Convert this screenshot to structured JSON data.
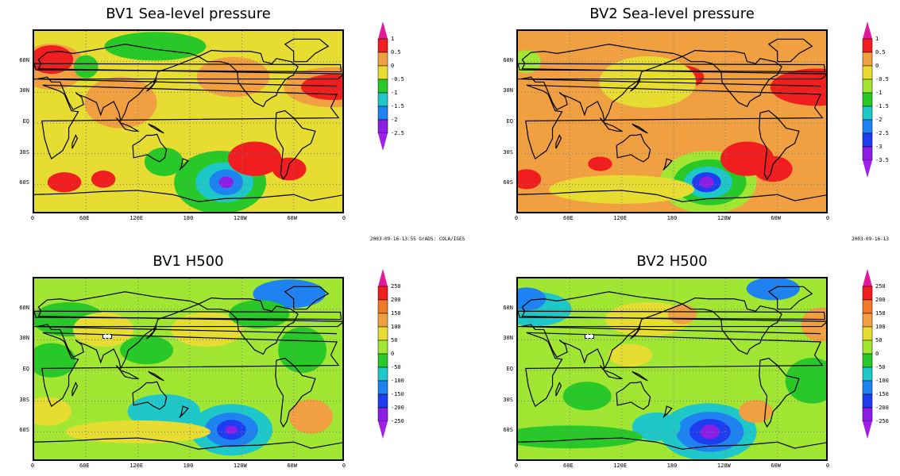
{
  "panels": [
    {
      "id": "bv1-slp",
      "title": "BV1  Sea-level pressure",
      "colorbar": {
        "labels": [
          "1",
          "0.5",
          "0",
          "-0.5",
          "-1",
          "-1.5",
          "-2",
          "-2.5"
        ],
        "colors": [
          "#e0189a",
          "#f01e1e",
          "#f0a040",
          "#e6dc32",
          "#28c828",
          "#1ec8c8",
          "#1e82f0",
          "#8c1ee6",
          "#a01ee6"
        ]
      },
      "base_color": "#e6dc32",
      "blobs": [
        {
          "lon": 215,
          "lat": -58,
          "rx": 38,
          "ry": 22,
          "color": "#28c828"
        },
        {
          "lon": 220,
          "lat": -58,
          "rx": 24,
          "ry": 14,
          "color": "#1ec8c8"
        },
        {
          "lon": 222,
          "lat": -58,
          "rx": 14,
          "ry": 9,
          "color": "#1e82f0"
        },
        {
          "lon": 222,
          "lat": -58,
          "rx": 6,
          "ry": 4,
          "color": "#8c1ee6"
        },
        {
          "lon": 150,
          "lat": -38,
          "rx": 16,
          "ry": 10,
          "color": "#28c828"
        },
        {
          "lon": 140,
          "lat": 75,
          "rx": 42,
          "ry": 10,
          "color": "#28c828"
        },
        {
          "lon": 255,
          "lat": -35,
          "rx": 22,
          "ry": 12,
          "color": "#f01e1e"
        },
        {
          "lon": 295,
          "lat": -45,
          "rx": 14,
          "ry": 8,
          "color": "#f01e1e"
        },
        {
          "lon": 345,
          "lat": 35,
          "rx": 40,
          "ry": 14,
          "color": "#f0a040"
        },
        {
          "lon": 345,
          "lat": 35,
          "rx": 26,
          "ry": 9,
          "color": "#f01e1e"
        },
        {
          "lon": 20,
          "lat": 55,
          "rx": 28,
          "ry": 16,
          "color": "#f0a040"
        },
        {
          "lon": 20,
          "lat": 62,
          "rx": 18,
          "ry": 10,
          "color": "#f01e1e"
        },
        {
          "lon": 35,
          "lat": -58,
          "rx": 14,
          "ry": 7,
          "color": "#f01e1e"
        },
        {
          "lon": 80,
          "lat": -55,
          "rx": 10,
          "ry": 6,
          "color": "#f01e1e"
        },
        {
          "lon": 230,
          "lat": 45,
          "rx": 30,
          "ry": 14,
          "color": "#f0a040"
        },
        {
          "lon": 100,
          "lat": 20,
          "rx": 30,
          "ry": 18,
          "color": "#f0a040"
        },
        {
          "lon": 60,
          "lat": 55,
          "rx": 10,
          "ry": 8,
          "color": "#28c828"
        }
      ],
      "ylabels": [
        "60N",
        "30N",
        "EQ",
        "30S",
        "60S"
      ],
      "xlabels": [
        "0",
        "60E",
        "120E",
        "180",
        "120W",
        "60W",
        "0"
      ],
      "stamp": "2003-09-16-13:55  GrADS: COLA/IGES"
    },
    {
      "id": "bv2-slp",
      "title": "BV2  Sea-level pressure",
      "colorbar": {
        "labels": [
          "1",
          "0.5",
          "0",
          "-0.5",
          "-1",
          "-1.5",
          "-2",
          "-2.5",
          "-3",
          "-3.5"
        ],
        "colors": [
          "#e0189a",
          "#f01e1e",
          "#f0a040",
          "#e6dc32",
          "#a0e632",
          "#28c828",
          "#1ec8c8",
          "#1e82f0",
          "#1e3cf0",
          "#8c1ee6",
          "#a01ee6"
        ]
      },
      "base_color": "#f0a040",
      "blobs": [
        {
          "lon": 220,
          "lat": -58,
          "rx": 40,
          "ry": 22,
          "color": "#a0e632"
        },
        {
          "lon": 222,
          "lat": -58,
          "rx": 30,
          "ry": 16,
          "color": "#28c828"
        },
        {
          "lon": 220,
          "lat": -58,
          "rx": 20,
          "ry": 11,
          "color": "#1ec8c8"
        },
        {
          "lon": 218,
          "lat": -58,
          "rx": 12,
          "ry": 7,
          "color": "#1e3cf0"
        },
        {
          "lon": 218,
          "lat": -58,
          "rx": 6,
          "ry": 4,
          "color": "#8c1ee6"
        },
        {
          "lon": 265,
          "lat": -35,
          "rx": 22,
          "ry": 12,
          "color": "#f01e1e"
        },
        {
          "lon": 295,
          "lat": -45,
          "rx": 16,
          "ry": 9,
          "color": "#f01e1e"
        },
        {
          "lon": 345,
          "lat": 35,
          "rx": 38,
          "ry": 13,
          "color": "#f01e1e"
        },
        {
          "lon": 190,
          "lat": 45,
          "rx": 18,
          "ry": 8,
          "color": "#f01e1e"
        },
        {
          "lon": 10,
          "lat": 60,
          "rx": 12,
          "ry": 8,
          "color": "#a0e632"
        },
        {
          "lon": 95,
          "lat": -40,
          "rx": 10,
          "ry": 5,
          "color": "#f01e1e"
        },
        {
          "lon": 10,
          "lat": -55,
          "rx": 12,
          "ry": 7,
          "color": "#f01e1e"
        },
        {
          "lon": 150,
          "lat": 40,
          "rx": 40,
          "ry": 18,
          "color": "#e6dc32"
        },
        {
          "lon": 120,
          "lat": -65,
          "rx": 60,
          "ry": 10,
          "color": "#e6dc32"
        }
      ],
      "ylabels": [
        "60N",
        "30N",
        "EQ",
        "30S",
        "60S"
      ],
      "xlabels": [
        "0",
        "60E",
        "120E",
        "180",
        "120W",
        "60W",
        "0"
      ],
      "stamp": "2003-09-16-13"
    },
    {
      "id": "bv1-h500",
      "title": "BV1  H500",
      "colorbar": {
        "labels": [
          "250",
          "200",
          "150",
          "100",
          "50",
          "0",
          "-50",
          "-100",
          "-150",
          "-200",
          "-250"
        ],
        "colors": [
          "#e0189a",
          "#f01e1e",
          "#f07828",
          "#f0a040",
          "#e6dc32",
          "#a0e632",
          "#28c828",
          "#1ec8c8",
          "#1e82f0",
          "#1e3cf0",
          "#8c1ee6",
          "#a01ee6"
        ]
      },
      "base_color": "#a0e632",
      "blobs": [
        {
          "lon": 228,
          "lat": -58,
          "rx": 34,
          "ry": 18,
          "color": "#1ec8c8"
        },
        {
          "lon": 228,
          "lat": -58,
          "rx": 22,
          "ry": 12,
          "color": "#1e82f0"
        },
        {
          "lon": 228,
          "lat": -58,
          "rx": 12,
          "ry": 7,
          "color": "#1e3cf0"
        },
        {
          "lon": 228,
          "lat": -58,
          "rx": 5,
          "ry": 3,
          "color": "#8c1ee6"
        },
        {
          "lon": 150,
          "lat": -40,
          "rx": 30,
          "ry": 12,
          "color": "#1ec8c8"
        },
        {
          "lon": 320,
          "lat": -45,
          "rx": 18,
          "ry": 12,
          "color": "#f0a040"
        },
        {
          "lon": 310,
          "lat": 20,
          "rx": 20,
          "ry": 16,
          "color": "#28c828"
        },
        {
          "lon": 295,
          "lat": 75,
          "rx": 30,
          "ry": 10,
          "color": "#1e82f0"
        },
        {
          "lon": 40,
          "lat": 50,
          "rx": 30,
          "ry": 12,
          "color": "#28c828"
        },
        {
          "lon": 80,
          "lat": 40,
          "rx": 25,
          "ry": 12,
          "color": "#e6dc32"
        },
        {
          "lon": 120,
          "lat": -60,
          "rx": 60,
          "ry": 8,
          "color": "#e6dc32"
        },
        {
          "lon": 200,
          "lat": 40,
          "rx": 30,
          "ry": 12,
          "color": "#e6dc32"
        },
        {
          "lon": 260,
          "lat": 55,
          "rx": 25,
          "ry": 10,
          "color": "#28c828"
        },
        {
          "lon": 15,
          "lat": -40,
          "rx": 20,
          "ry": 10,
          "color": "#e6dc32"
        },
        {
          "lon": 20,
          "lat": 10,
          "rx": 20,
          "ry": 12,
          "color": "#28c828"
        },
        {
          "lon": 130,
          "lat": 20,
          "rx": 22,
          "ry": 10,
          "color": "#28c828"
        }
      ],
      "ylabels": [
        "60N",
        "30N",
        "EQ",
        "30S",
        "60S"
      ],
      "xlabels": [
        "0",
        "60E",
        "120E",
        "180",
        "120W",
        "60W",
        "0"
      ],
      "stamp": ""
    },
    {
      "id": "bv2-h500",
      "title": "BV2  H500",
      "colorbar": {
        "labels": [
          "250",
          "200",
          "150",
          "100",
          "50",
          "0",
          "-50",
          "-100",
          "-150",
          "-200",
          "-250"
        ],
        "colors": [
          "#e0189a",
          "#f01e1e",
          "#f07828",
          "#f0a040",
          "#e6dc32",
          "#a0e632",
          "#28c828",
          "#1ec8c8",
          "#1e82f0",
          "#1e3cf0",
          "#8c1ee6",
          "#a01ee6"
        ]
      },
      "base_color": "#a0e632",
      "blobs": [
        {
          "lon": 220,
          "lat": -60,
          "rx": 40,
          "ry": 20,
          "color": "#1ec8c8"
        },
        {
          "lon": 222,
          "lat": -60,
          "rx": 28,
          "ry": 14,
          "color": "#1e82f0"
        },
        {
          "lon": 222,
          "lat": -60,
          "rx": 17,
          "ry": 9,
          "color": "#1e3cf0"
        },
        {
          "lon": 222,
          "lat": -60,
          "rx": 8,
          "ry": 5,
          "color": "#8c1ee6"
        },
        {
          "lon": 160,
          "lat": -55,
          "rx": 20,
          "ry": 10,
          "color": "#1ec8c8"
        },
        {
          "lon": 20,
          "lat": 60,
          "rx": 30,
          "ry": 12,
          "color": "#1ec8c8"
        },
        {
          "lon": 10,
          "lat": 70,
          "rx": 16,
          "ry": 8,
          "color": "#1e82f0"
        },
        {
          "lon": 275,
          "lat": -40,
          "rx": 14,
          "ry": 8,
          "color": "#f0a040"
        },
        {
          "lon": 350,
          "lat": 45,
          "rx": 16,
          "ry": 12,
          "color": "#f0a040"
        },
        {
          "lon": 295,
          "lat": 80,
          "rx": 22,
          "ry": 8,
          "color": "#1e82f0"
        },
        {
          "lon": 150,
          "lat": 50,
          "rx": 35,
          "ry": 12,
          "color": "#e6dc32"
        },
        {
          "lon": 190,
          "lat": 55,
          "rx": 12,
          "ry": 7,
          "color": "#f0a040"
        },
        {
          "lon": 340,
          "lat": -10,
          "rx": 22,
          "ry": 16,
          "color": "#28c828"
        },
        {
          "lon": 80,
          "lat": -25,
          "rx": 20,
          "ry": 10,
          "color": "#28c828"
        },
        {
          "lon": 130,
          "lat": 15,
          "rx": 18,
          "ry": 8,
          "color": "#e6dc32"
        },
        {
          "lon": 60,
          "lat": -65,
          "rx": 60,
          "ry": 8,
          "color": "#28c828"
        }
      ],
      "ylabels": [
        "60N",
        "30N",
        "EQ",
        "30S",
        "60S"
      ],
      "xlabels": [
        "0",
        "60E",
        "120E",
        "180",
        "120W",
        "60W",
        "0"
      ],
      "stamp": ""
    }
  ]
}
